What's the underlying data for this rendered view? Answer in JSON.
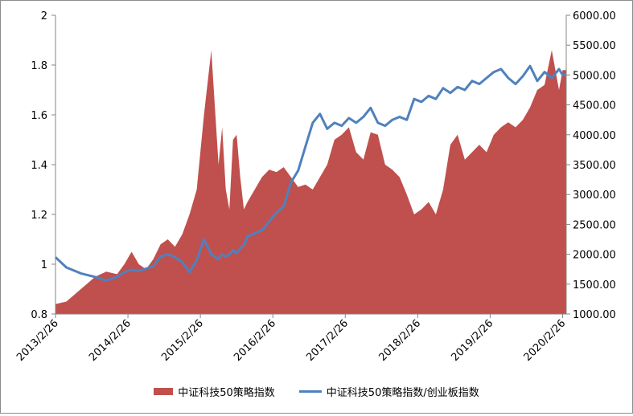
{
  "chart_data": {
    "type": "area",
    "title": "",
    "xlabel": "",
    "ylabel": "",
    "x_tick_labels": [
      "2013/2/26",
      "2014/2/26",
      "2015/2/26",
      "2016/2/26",
      "2017/2/26",
      "2018/2/26",
      "2019/2/26",
      "2020/2/26"
    ],
    "y_left": {
      "ylim": [
        0.8,
        2.0
      ],
      "ticks": [
        "0.8",
        "1",
        "1.2",
        "1.4",
        "1.6",
        "1.8",
        "2"
      ]
    },
    "y_right": {
      "ylim": [
        1000,
        6000
      ],
      "ticks": [
        "1000.00",
        "1500.00",
        "2000.00",
        "2500.00",
        "3000.00",
        "3500.00",
        "4000.00",
        "4500.00",
        "5000.00",
        "5500.00",
        "6000.00"
      ]
    },
    "grid": false,
    "legend_position": "bottom",
    "series": [
      {
        "name": "中证科技50策略指数",
        "axis": "left",
        "color": "#c0504d",
        "chart": "area",
        "x": [
          2013.15,
          2013.3,
          2013.5,
          2013.7,
          2013.85,
          2014.0,
          2014.1,
          2014.2,
          2014.3,
          2014.4,
          2014.5,
          2014.6,
          2014.7,
          2014.8,
          2014.9,
          2015.0,
          2015.1,
          2015.2,
          2015.3,
          2015.4,
          2015.45,
          2015.5,
          2015.55,
          2015.6,
          2015.65,
          2015.7,
          2015.75,
          2015.8,
          2015.9,
          2016.0,
          2016.1,
          2016.2,
          2016.3,
          2016.4,
          2016.5,
          2016.6,
          2016.7,
          2016.8,
          2016.9,
          2017.0,
          2017.1,
          2017.2,
          2017.3,
          2017.4,
          2017.5,
          2017.6,
          2017.7,
          2017.8,
          2017.9,
          2018.0,
          2018.1,
          2018.2,
          2018.3,
          2018.4,
          2018.5,
          2018.6,
          2018.7,
          2018.8,
          2018.9,
          2019.0,
          2019.1,
          2019.2,
          2019.3,
          2019.4,
          2019.5,
          2019.6,
          2019.7,
          2019.8,
          2019.9,
          2020.0,
          2020.1,
          2020.15,
          2020.2
        ],
        "y": [
          0.84,
          0.85,
          0.9,
          0.95,
          0.97,
          0.96,
          1.0,
          1.05,
          1.0,
          0.98,
          1.02,
          1.08,
          1.1,
          1.07,
          1.12,
          1.2,
          1.3,
          1.6,
          1.86,
          1.4,
          1.55,
          1.3,
          1.22,
          1.5,
          1.52,
          1.35,
          1.22,
          1.25,
          1.3,
          1.35,
          1.38,
          1.37,
          1.39,
          1.35,
          1.31,
          1.32,
          1.3,
          1.35,
          1.4,
          1.5,
          1.52,
          1.55,
          1.45,
          1.42,
          1.53,
          1.52,
          1.4,
          1.38,
          1.35,
          1.28,
          1.2,
          1.22,
          1.25,
          1.2,
          1.3,
          1.48,
          1.52,
          1.42,
          1.45,
          1.48,
          1.45,
          1.52,
          1.55,
          1.57,
          1.55,
          1.58,
          1.63,
          1.7,
          1.72,
          1.86,
          1.7,
          1.78,
          1.78
        ]
      },
      {
        "name": "中证科技50策略指数/创业板指数",
        "axis": "right",
        "color": "#4f81bd",
        "chart": "line",
        "x": [
          2013.15,
          2013.3,
          2013.5,
          2013.7,
          2013.85,
          2014.0,
          2014.1,
          2014.2,
          2014.3,
          2014.4,
          2014.5,
          2014.6,
          2014.7,
          2014.8,
          2014.9,
          2015.0,
          2015.1,
          2015.2,
          2015.3,
          2015.4,
          2015.45,
          2015.5,
          2015.55,
          2015.6,
          2015.65,
          2015.7,
          2015.75,
          2015.8,
          2015.9,
          2016.0,
          2016.1,
          2016.2,
          2016.3,
          2016.4,
          2016.5,
          2016.6,
          2016.7,
          2016.8,
          2016.9,
          2017.0,
          2017.1,
          2017.2,
          2017.3,
          2017.4,
          2017.5,
          2017.6,
          2017.7,
          2017.8,
          2017.9,
          2018.0,
          2018.1,
          2018.2,
          2018.3,
          2018.4,
          2018.5,
          2018.6,
          2018.7,
          2018.8,
          2018.9,
          2019.0,
          2019.1,
          2019.2,
          2019.3,
          2019.4,
          2019.5,
          2019.6,
          2019.7,
          2019.8,
          2019.9,
          2020.0,
          2020.1,
          2020.15,
          2020.2
        ],
        "y": [
          1950,
          1780,
          1680,
          1620,
          1560,
          1620,
          1700,
          1740,
          1720,
          1760,
          1800,
          1960,
          2000,
          1950,
          1870,
          1700,
          1900,
          2250,
          2000,
          1920,
          2000,
          1960,
          2000,
          2070,
          2020,
          2100,
          2150,
          2300,
          2350,
          2400,
          2550,
          2700,
          2800,
          3200,
          3400,
          3800,
          4200,
          4350,
          4100,
          4200,
          4150,
          4280,
          4200,
          4300,
          4450,
          4200,
          4150,
          4250,
          4300,
          4250,
          4600,
          4550,
          4650,
          4600,
          4780,
          4700,
          4800,
          4750,
          4900,
          4850,
          4950,
          5050,
          5100,
          4950,
          4850,
          4980,
          5150,
          4900,
          5050,
          4950,
          5100,
          5000,
          5000
        ]
      }
    ]
  },
  "legend": {
    "area_label": "中证科技50策略指数",
    "line_label": "中证科技50策略指数/创业板指数"
  }
}
